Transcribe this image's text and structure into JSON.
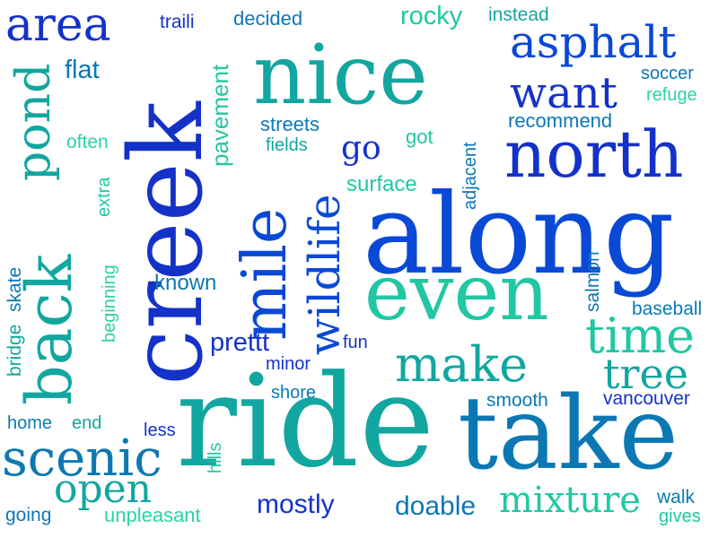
{
  "colors": {
    "deep_blue": "#1432c8",
    "royal_blue": "#0a49d6",
    "teal_blue": "#0b78b4",
    "teal": "#12a6a0",
    "aqua": "#21c7a2",
    "mint": "#2ad3a6"
  },
  "words": [
    {
      "text": "area"
    },
    {
      "text": "traili"
    },
    {
      "text": "decided"
    },
    {
      "text": "rocky"
    },
    {
      "text": "instead"
    },
    {
      "text": "nice"
    },
    {
      "text": "asphalt"
    },
    {
      "text": "want"
    },
    {
      "text": "soccer"
    },
    {
      "text": "refuge"
    },
    {
      "text": "flat"
    },
    {
      "text": "pond"
    },
    {
      "text": "creek"
    },
    {
      "text": "recommend"
    },
    {
      "text": "north"
    },
    {
      "text": "often"
    },
    {
      "text": "pavement"
    },
    {
      "text": "streets"
    },
    {
      "text": "fields"
    },
    {
      "text": "got"
    },
    {
      "text": "go"
    },
    {
      "text": "mile"
    },
    {
      "text": "wildlife"
    },
    {
      "text": "surface"
    },
    {
      "text": "adjacent"
    },
    {
      "text": "back"
    },
    {
      "text": "extra"
    },
    {
      "text": "along"
    },
    {
      "text": "beginning"
    },
    {
      "text": "skate"
    },
    {
      "text": "bridge"
    },
    {
      "text": "known"
    },
    {
      "text": "even"
    },
    {
      "text": "salmon"
    },
    {
      "text": "baseball"
    },
    {
      "text": "prettt"
    },
    {
      "text": "fun"
    },
    {
      "text": "time"
    },
    {
      "text": "make"
    },
    {
      "text": "minor"
    },
    {
      "text": "tree"
    },
    {
      "text": "shore"
    },
    {
      "text": "smooth"
    },
    {
      "text": "vancouver"
    },
    {
      "text": "home"
    },
    {
      "text": "end"
    },
    {
      "text": "less"
    },
    {
      "text": "ride"
    },
    {
      "text": "take"
    },
    {
      "text": "scenic"
    },
    {
      "text": "hills"
    },
    {
      "text": "open"
    },
    {
      "text": "mostly"
    },
    {
      "text": "doable"
    },
    {
      "text": "mixture"
    },
    {
      "text": "walk"
    },
    {
      "text": "going"
    },
    {
      "text": "unpleasant"
    },
    {
      "text": "gives"
    }
  ]
}
